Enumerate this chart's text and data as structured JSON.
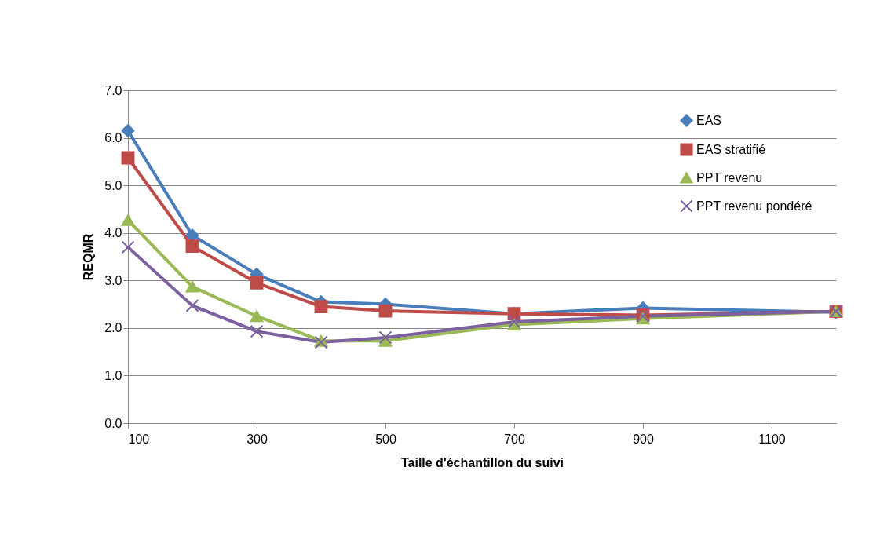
{
  "chart_data": {
    "type": "line",
    "xlabel": "Taille d'échantillon du suivi",
    "ylabel": "REQMR",
    "x": [
      100,
      200,
      300,
      400,
      500,
      700,
      900,
      1200
    ],
    "series": [
      {
        "name": "EAS",
        "color": "#4a7ebb",
        "marker": "diamond",
        "values": [
          6.15,
          3.95,
          3.13,
          2.55,
          2.5,
          2.3,
          2.42,
          2.33
        ]
      },
      {
        "name": "EAS stratifié",
        "color": "#be4b48",
        "marker": "square",
        "values": [
          5.58,
          3.72,
          2.95,
          2.45,
          2.36,
          2.3,
          2.27,
          2.35
        ]
      },
      {
        "name": "PPT revenu",
        "color": "#98b954",
        "marker": "triangle",
        "values": [
          4.27,
          2.87,
          2.25,
          1.73,
          1.73,
          2.07,
          2.2,
          2.35
        ]
      },
      {
        "name": "PPT revenu pondéré",
        "color": "#7d60a0",
        "marker": "cross",
        "values": [
          3.7,
          2.47,
          1.93,
          1.7,
          1.8,
          2.13,
          2.25,
          2.35
        ]
      }
    ],
    "xlim": [
      100,
      1200
    ],
    "xticks": [
      100,
      300,
      500,
      700,
      900,
      1100
    ],
    "ylim": [
      0,
      7
    ],
    "yticks": [
      {
        "value": 0,
        "label": "0.0"
      },
      {
        "value": 1,
        "label": "1.0"
      },
      {
        "value": 2,
        "label": "2.0"
      },
      {
        "value": 3,
        "label": "3.0"
      },
      {
        "value": 4,
        "label": "4.0"
      },
      {
        "value": 5,
        "label": "5.0"
      },
      {
        "value": 6,
        "label": "6.0"
      },
      {
        "value": 7,
        "label": "7.0"
      }
    ],
    "grid": "y",
    "legend": "top right"
  }
}
